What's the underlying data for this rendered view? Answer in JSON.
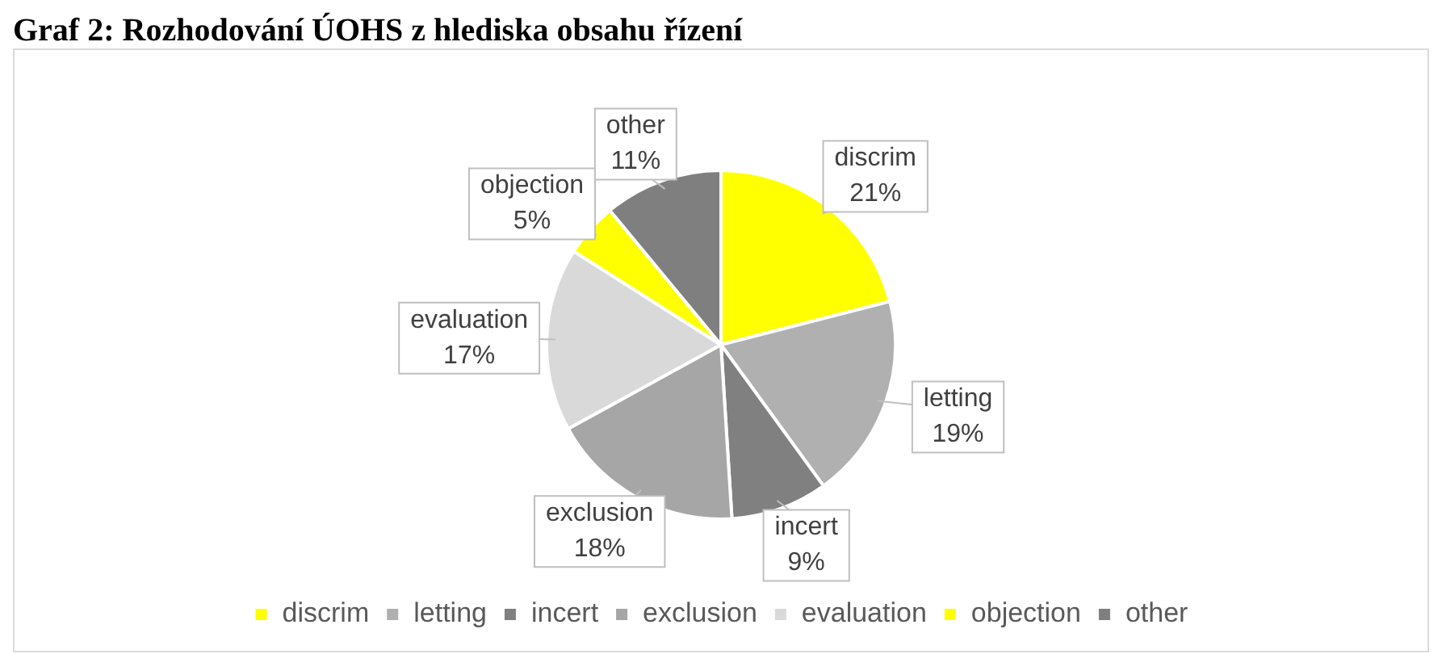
{
  "chart_data": {
    "type": "pie",
    "title": "Graf 2: Rozhodování ÚOHS z hlediska obsahu řízení",
    "categories": [
      "discrim",
      "letting",
      "incert",
      "exclusion",
      "evaluation",
      "objection",
      "other"
    ],
    "values": [
      21,
      19,
      9,
      18,
      17,
      5,
      11
    ],
    "colors": [
      "#ffff00",
      "#b0b0b0",
      "#808080",
      "#a6a6a6",
      "#d9d9d9",
      "#ffff00",
      "#7f7f7f"
    ],
    "value_labels": [
      "21%",
      "19%",
      "9%",
      "18%",
      "17%",
      "5%",
      "11%"
    ],
    "legend": "bottom"
  }
}
